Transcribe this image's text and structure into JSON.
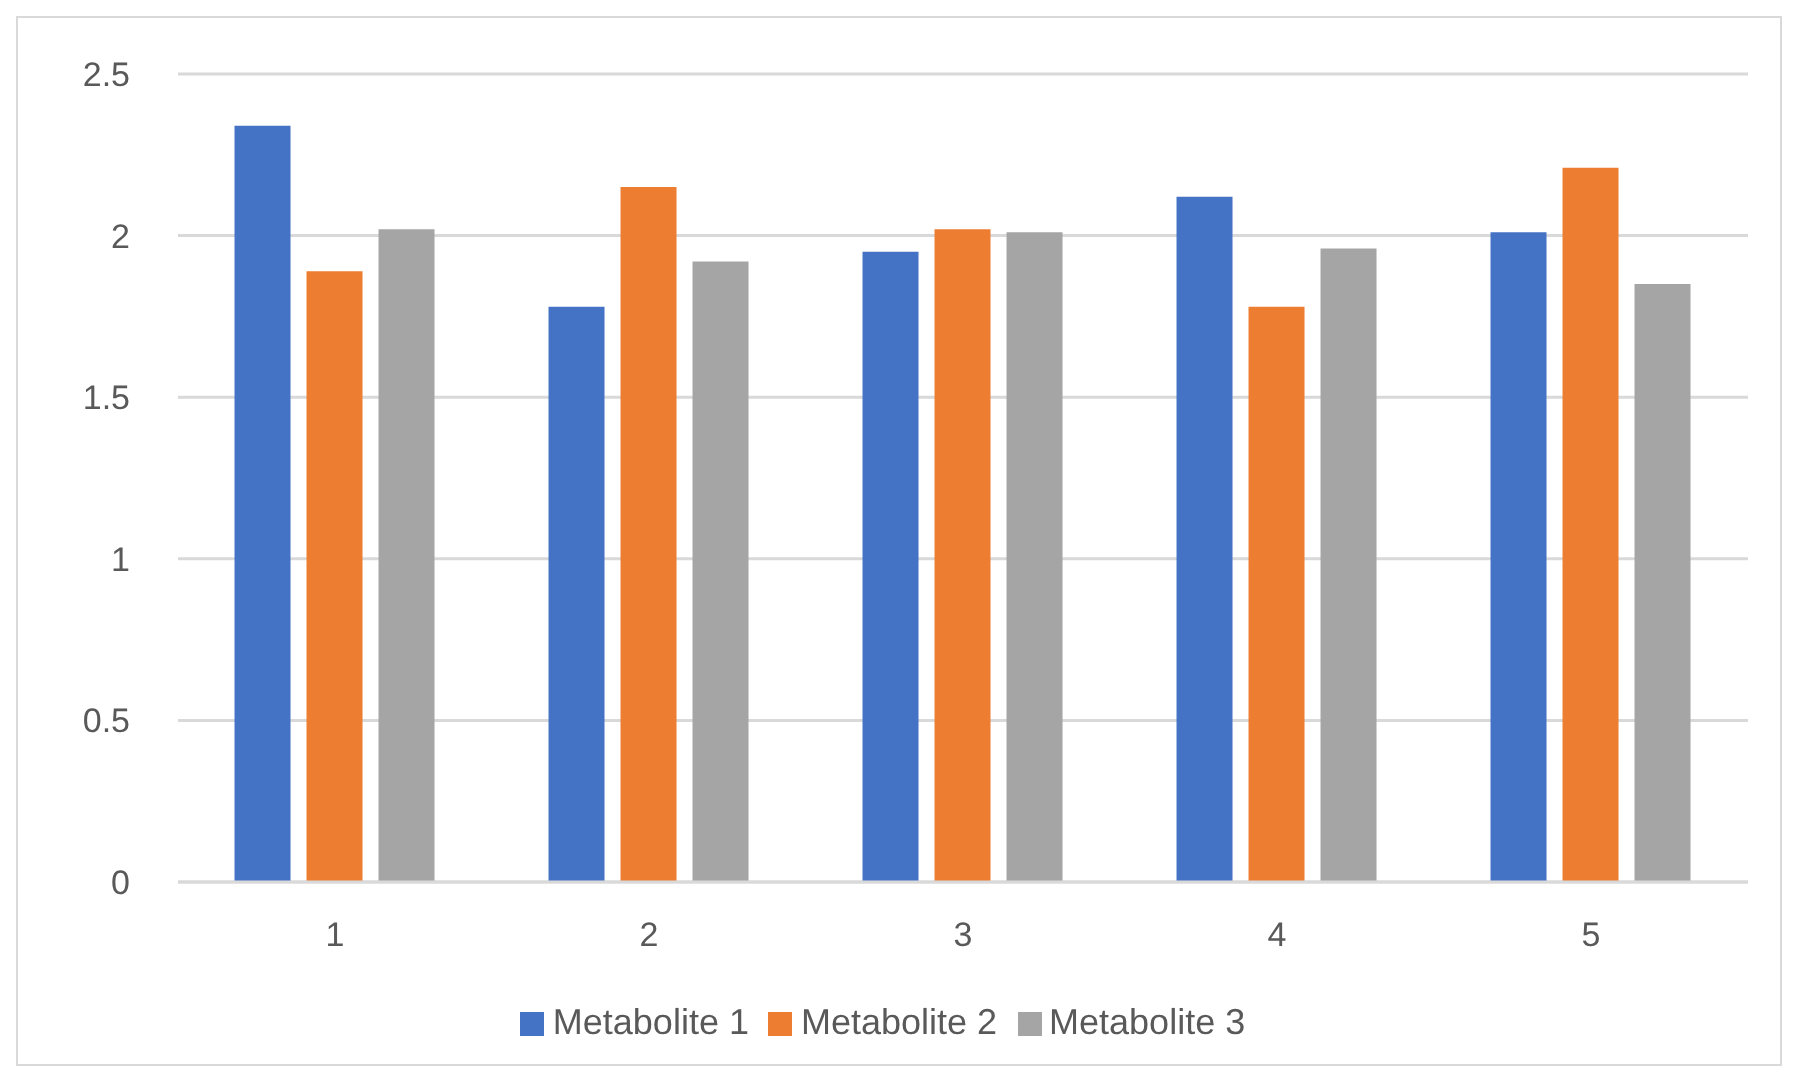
{
  "chart_data": {
    "type": "bar",
    "categories": [
      "1",
      "2",
      "3",
      "4",
      "5"
    ],
    "series": [
      {
        "name": "Metabolite 1",
        "color": "#4472c4",
        "values": [
          2.34,
          1.78,
          1.95,
          2.12,
          2.01
        ]
      },
      {
        "name": "Metabolite 2",
        "color": "#ed7d31",
        "values": [
          1.89,
          2.15,
          2.02,
          1.78,
          2.21
        ]
      },
      {
        "name": "Metabolite 3",
        "color": "#a5a5a5",
        "values": [
          2.02,
          1.92,
          2.01,
          1.96,
          1.85
        ]
      }
    ],
    "ylim": [
      0,
      2.5
    ],
    "yticks": [
      0,
      0.5,
      1,
      1.5,
      2,
      2.5
    ],
    "grid": "y",
    "legend": "bottom"
  }
}
